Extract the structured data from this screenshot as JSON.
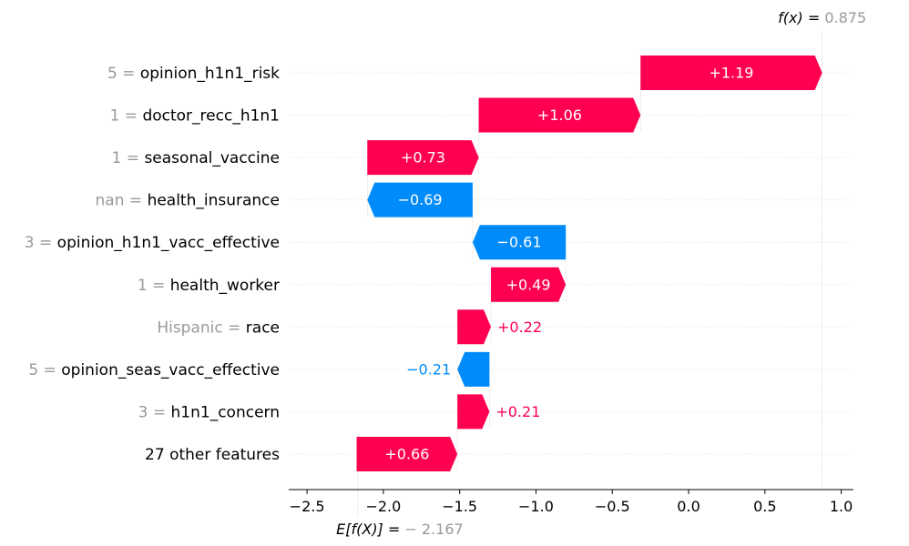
{
  "chart_data": {
    "type": "waterfall",
    "xlim": [
      -2.62,
      1.08
    ],
    "xticks": [
      -2.5,
      -2.0,
      -1.5,
      -1.0,
      -0.5,
      0.0,
      0.5,
      1.0
    ],
    "xtick_labels": [
      "−2.5",
      "−2.0",
      "−1.5",
      "−1.0",
      "−0.5",
      "0.0",
      "0.5",
      "1.0"
    ],
    "base_value": -2.167,
    "base_label_prefix": "E[f(X)] = ",
    "base_label_value": "− 2.167",
    "output_value": 0.875,
    "output_label_prefix": "f(x) = ",
    "output_label_value": "0.875",
    "colors": {
      "positive": "#ff0051",
      "negative": "#008bfb",
      "feature_value": "#999999",
      "feature_name": "#000000"
    },
    "features": [
      {
        "value": "5",
        "name": "opinion_h1n1_risk",
        "contribution": 1.19,
        "label": "+1.19",
        "start": -0.315,
        "end": 0.875
      },
      {
        "value": "1",
        "name": "doctor_recc_h1n1",
        "contribution": 1.06,
        "label": "+1.06",
        "start": -1.375,
        "end": -0.315
      },
      {
        "value": "1",
        "name": "seasonal_vaccine",
        "contribution": 0.73,
        "label": "+0.73",
        "start": -2.105,
        "end": -1.375
      },
      {
        "value": "nan",
        "name": "health_insurance",
        "contribution": -0.69,
        "label": "−0.69",
        "start": -1.415,
        "end": -2.105
      },
      {
        "value": "3",
        "name": "opinion_h1n1_vacc_effective",
        "contribution": -0.61,
        "label": "−0.61",
        "start": -0.805,
        "end": -1.415
      },
      {
        "value": "1",
        "name": "health_worker",
        "contribution": 0.49,
        "label": "+0.49",
        "start": -1.295,
        "end": -0.805
      },
      {
        "value": "Hispanic",
        "name": "race",
        "contribution": 0.22,
        "label": "+0.22",
        "start": -1.515,
        "end": -1.295
      },
      {
        "value": "5",
        "name": "opinion_seas_vacc_effective",
        "contribution": -0.21,
        "label": "−0.21",
        "start": -1.305,
        "end": -1.515
      },
      {
        "value": "3",
        "name": "h1n1_concern",
        "contribution": 0.21,
        "label": "+0.21",
        "start": -1.515,
        "end": -1.305
      },
      {
        "value": "",
        "name": "27 other features",
        "contribution": 0.66,
        "label": "+0.66",
        "start": -2.175,
        "end": -1.515
      }
    ]
  }
}
